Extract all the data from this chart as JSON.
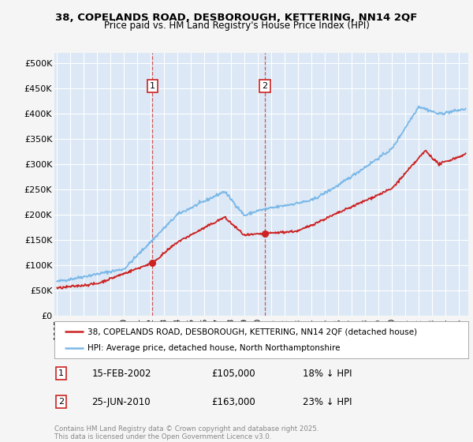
{
  "title_line1": "38, COPELANDS ROAD, DESBOROUGH, KETTERING, NN14 2QF",
  "title_line2": "Price paid vs. HM Land Registry's House Price Index (HPI)",
  "ylim": [
    0,
    520000
  ],
  "yticks": [
    0,
    50000,
    100000,
    150000,
    200000,
    250000,
    300000,
    350000,
    400000,
    450000,
    500000
  ],
  "ytick_labels": [
    "£0",
    "£50K",
    "£100K",
    "£150K",
    "£200K",
    "£250K",
    "£300K",
    "£350K",
    "£400K",
    "£450K",
    "£500K"
  ],
  "background_color": "#f5f5f5",
  "plot_bg_color": "#dce8f5",
  "grid_color": "#ffffff",
  "hpi_color": "#7ab8e8",
  "price_color": "#cc2222",
  "sale1_date_label": "15-FEB-2002",
  "sale1_price_label": "£105,000",
  "sale1_pct_label": "18% ↓ HPI",
  "sale1_num": "1",
  "sale2_date_label": "25-JUN-2010",
  "sale2_price_label": "£163,000",
  "sale2_pct_label": "23% ↓ HPI",
  "sale2_num": "2",
  "legend_label1": "38, COPELANDS ROAD, DESBOROUGH, KETTERING, NN14 2QF (detached house)",
  "legend_label2": "HPI: Average price, detached house, North Northamptonshire",
  "footer": "Contains HM Land Registry data © Crown copyright and database right 2025.\nThis data is licensed under the Open Government Licence v3.0.",
  "sale1_x": 2002.12,
  "sale1_y": 105000,
  "sale2_x": 2010.5,
  "sale2_y": 163000,
  "xlim_left": 1994.8,
  "xlim_right": 2025.7
}
